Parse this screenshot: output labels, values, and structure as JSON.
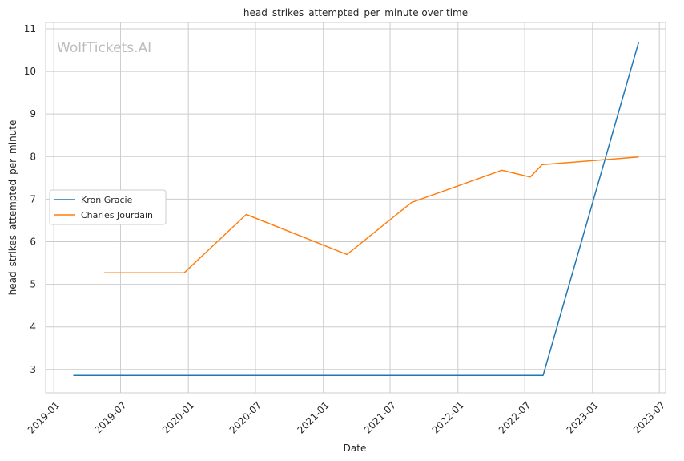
{
  "watermark": "WolfTickets.AI",
  "chart_data": {
    "type": "line",
    "title": "head_strikes_attempted_per_minute over time",
    "xlabel": "Date",
    "ylabel": "head_strikes_attempted_per_minute",
    "x_ticks": [
      "2019-01",
      "2019-07",
      "2020-01",
      "2020-07",
      "2021-01",
      "2021-07",
      "2022-01",
      "2022-07",
      "2023-01",
      "2023-07"
    ],
    "y_ticks": [
      3,
      4,
      5,
      6,
      7,
      8,
      9,
      10,
      11
    ],
    "xlim": [
      "2018-12-10",
      "2023-07-18"
    ],
    "ylim": [
      2.45,
      11.15
    ],
    "grid": true,
    "legend_position": "center-left",
    "series": [
      {
        "name": "Kron Gracie",
        "color": "#1f77b4",
        "points": [
          {
            "x": "2019-02-23",
            "y": 2.86
          },
          {
            "x": "2022-08-20",
            "y": 2.86
          },
          {
            "x": "2023-05-06",
            "y": 10.69
          }
        ]
      },
      {
        "name": "Charles Jourdain",
        "color": "#ff7f0e",
        "points": [
          {
            "x": "2019-05-18",
            "y": 5.27
          },
          {
            "x": "2019-12-21",
            "y": 5.27
          },
          {
            "x": "2020-06-06",
            "y": 6.64
          },
          {
            "x": "2021-03-06",
            "y": 5.7
          },
          {
            "x": "2021-08-28",
            "y": 6.92
          },
          {
            "x": "2022-04-30",
            "y": 7.68
          },
          {
            "x": "2022-07-16",
            "y": 7.52
          },
          {
            "x": "2022-08-17",
            "y": 7.81
          },
          {
            "x": "2023-05-06",
            "y": 7.99
          }
        ]
      }
    ]
  }
}
